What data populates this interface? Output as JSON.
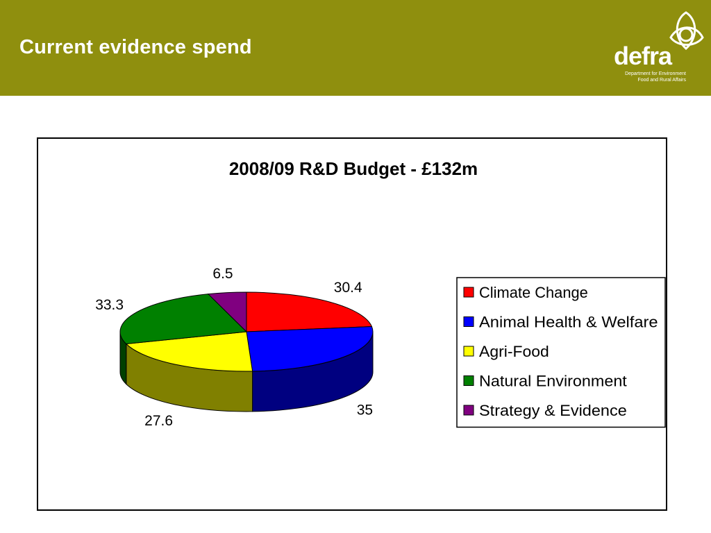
{
  "slide": {
    "title": "Current evidence spend"
  },
  "logo": {
    "wordmark": "defra",
    "subtitle_line1": "Department for Environment",
    "subtitle_line2": "Food and Rural Affairs",
    "icon": "celtic-knot-icon"
  },
  "colors": {
    "header_bg": "#8f8f0e"
  },
  "chart_data": {
    "type": "pie",
    "style": "3d",
    "title": "2008/09 R&D Budget - £132m",
    "legend_position": "right",
    "categories": [
      "Climate Change",
      "Animal Health & Welfare",
      "Agri-Food",
      "Natural Environment",
      "Strategy & Evidence"
    ],
    "values": [
      30.4,
      35,
      27.6,
      33.3,
      6.5
    ],
    "value_labels": [
      "30.4",
      "35",
      "27.6",
      "33.3",
      "6.5"
    ],
    "colors": [
      "#ff0000",
      "#0000ff",
      "#ffff00",
      "#008000",
      "#800080"
    ],
    "side_colors": [
      "#800000",
      "#000080",
      "#808000",
      "#004000",
      "#400040"
    ]
  }
}
